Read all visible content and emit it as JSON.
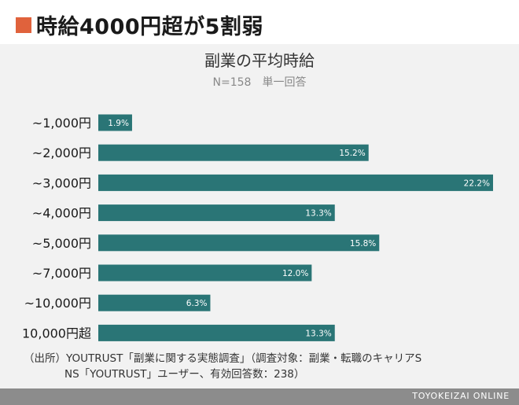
{
  "headline": {
    "text": "時給4000円超が5割弱",
    "accent_color": "#e0623c"
  },
  "chart_data": {
    "type": "bar",
    "orientation": "horizontal",
    "title": "副業の平均時給",
    "subtitle": "N=158　単一回答",
    "categories": [
      "~1,000円",
      "~2,000円",
      "~3,000円",
      "~4,000円",
      "~5,000円",
      "~7,000円",
      "~10,000円",
      "10,000円超"
    ],
    "values": [
      1.9,
      15.2,
      22.2,
      13.3,
      15.8,
      12.0,
      6.3,
      13.3
    ],
    "value_labels": [
      "1.9%",
      "15.2%",
      "22.2%",
      "13.3%",
      "15.8%",
      "12.0%",
      "6.3%",
      "13.3%"
    ],
    "unit": "%",
    "bar_color": "#2a7576",
    "background_color": "#f2f2f2",
    "xlim": [
      0,
      22.2
    ],
    "grid": false,
    "legend": "none"
  },
  "footer": {
    "line1": "（出所）YOUTRUST「副業に関する実態調査」（調査対象：副業・転職のキャリアS",
    "line2": "NS「YOUTRUST」ユーザー、有効回答数：238）"
  },
  "brand": {
    "text": "TOYOKEIZAI ONLINE",
    "bar_color": "#8c8c8c"
  }
}
